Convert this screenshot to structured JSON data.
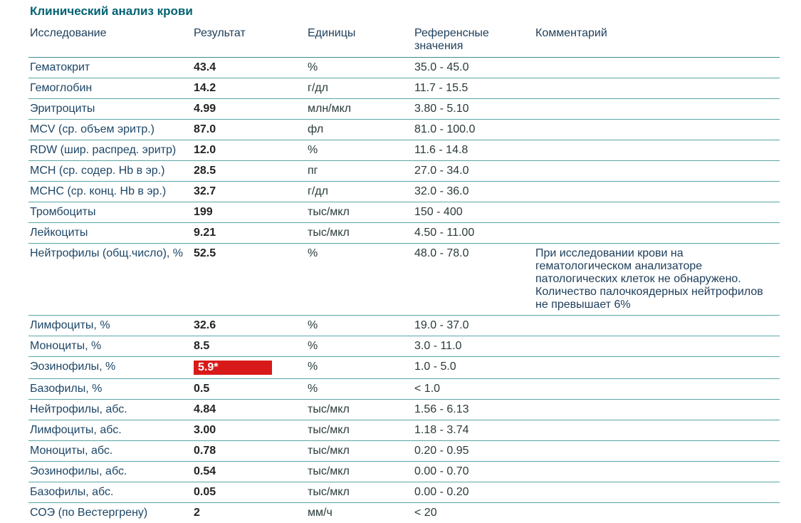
{
  "colors": {
    "title": "#006373",
    "header_text": "#1d3d59",
    "row_border": "#5aa6a6",
    "header_border": "#3d8d8d",
    "study": "#1d4666",
    "result": "#232323",
    "units": "#2a3a3a",
    "ref": "#2a3a3a",
    "comment": "#1d3d59",
    "flag_bg": "#d81a1a",
    "flag_text": "#ffffff",
    "background": "#ffffff"
  },
  "title": "Клинический анализ крови",
  "headers": {
    "study": "Исследование",
    "result": "Результат",
    "units": "Единицы",
    "reference": "Референсные значения",
    "comment": "Комментарий"
  },
  "rows": [
    {
      "study": "Гематокрит",
      "result": "43.4",
      "units": "%",
      "ref": "35.0 - 45.0",
      "comment": "",
      "flag": false
    },
    {
      "study": "Гемоглобин",
      "result": "14.2",
      "units": "г/дл",
      "ref": "11.7 - 15.5",
      "comment": "",
      "flag": false
    },
    {
      "study": "Эритроциты",
      "result": "4.99",
      "units": "млн/мкл",
      "ref": "3.80 - 5.10",
      "comment": "",
      "flag": false
    },
    {
      "study": "MCV (ср. объем эритр.)",
      "result": "87.0",
      "units": "фл",
      "ref": "81.0 - 100.0",
      "comment": "",
      "flag": false
    },
    {
      "study": "RDW (шир. распред. эритр)",
      "result": "12.0",
      "units": "%",
      "ref": "11.6 - 14.8",
      "comment": "",
      "flag": false
    },
    {
      "study": "MCH (ср. содер. Hb в эр.)",
      "result": "28.5",
      "units": "пг",
      "ref": "27.0 - 34.0",
      "comment": "",
      "flag": false
    },
    {
      "study": "MCHC (ср. конц. Hb в эр.)",
      "result": "32.7",
      "units": "г/дл",
      "ref": "32.0 - 36.0",
      "comment": "",
      "flag": false
    },
    {
      "study": "Тромбоциты",
      "result": "199",
      "units": "тыс/мкл",
      "ref": "150 - 400",
      "comment": "",
      "flag": false
    },
    {
      "study": "Лейкоциты",
      "result": "9.21",
      "units": "тыс/мкл",
      "ref": "4.50 - 11.00",
      "comment": "",
      "flag": false
    },
    {
      "study": "Нейтрофилы (общ.число), %",
      "result": "52.5",
      "units": "%",
      "ref": "48.0 - 78.0",
      "comment": "При исследовании крови на гематологическом анализаторе патологических клеток не обнаружено. Количество палочкоядерных нейтрофилов не превышает 6%",
      "flag": false
    },
    {
      "study": "Лимфоциты, %",
      "result": "32.6",
      "units": "%",
      "ref": "19.0 - 37.0",
      "comment": "",
      "flag": false
    },
    {
      "study": "Моноциты, %",
      "result": "8.5",
      "units": "%",
      "ref": "3.0 - 11.0",
      "comment": "",
      "flag": false
    },
    {
      "study": "Эозинофилы, %",
      "result": "5.9*",
      "units": "%",
      "ref": "1.0 - 5.0",
      "comment": "",
      "flag": true
    },
    {
      "study": "Базофилы, %",
      "result": "0.5",
      "units": "%",
      "ref": "< 1.0",
      "comment": "",
      "flag": false
    },
    {
      "study": "Нейтрофилы, абс.",
      "result": "4.84",
      "units": "тыс/мкл",
      "ref": "1.56 - 6.13",
      "comment": "",
      "flag": false
    },
    {
      "study": "Лимфоциты, абс.",
      "result": "3.00",
      "units": "тыс/мкл",
      "ref": "1.18 - 3.74",
      "comment": "",
      "flag": false
    },
    {
      "study": "Моноциты, абс.",
      "result": "0.78",
      "units": "тыс/мкл",
      "ref": "0.20 - 0.95",
      "comment": "",
      "flag": false
    },
    {
      "study": "Эозинофилы, абс.",
      "result": "0.54",
      "units": "тыс/мкл",
      "ref": "0.00 - 0.70",
      "comment": "",
      "flag": false
    },
    {
      "study": "Базофилы, абс.",
      "result": "0.05",
      "units": "тыс/мкл",
      "ref": "0.00 - 0.20",
      "comment": "",
      "flag": false
    },
    {
      "study": "СОЭ (по Вестергрену)",
      "result": "2",
      "units": "мм/ч",
      "ref": "< 20",
      "comment": "",
      "flag": false
    }
  ]
}
